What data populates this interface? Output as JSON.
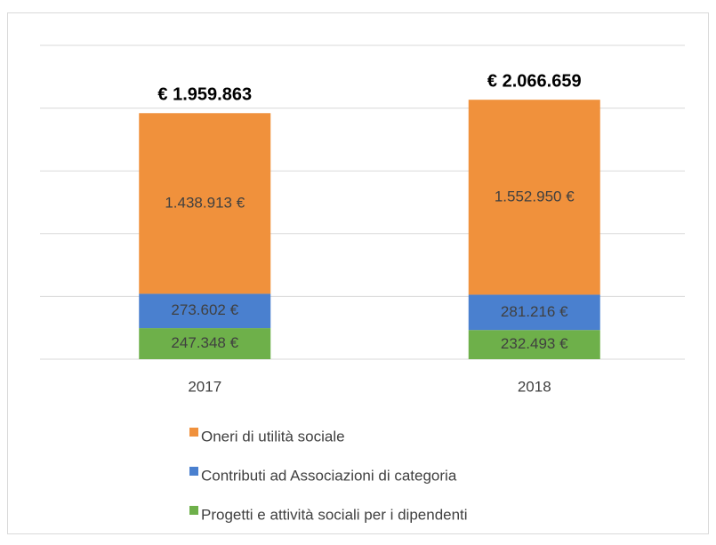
{
  "chart_data": {
    "type": "stacked_bar",
    "categories": [
      "2017",
      "2018"
    ],
    "series": [
      {
        "name": "Oneri di utilità sociale",
        "color": "#f0913c",
        "values": [
          1438913,
          1552950
        ],
        "value_labels": [
          "1.438.913 €",
          "1.552.950 €"
        ]
      },
      {
        "name": "Contributi ad Associazioni di categoria",
        "color": "#4a80cf",
        "values": [
          273602,
          281216
        ],
        "value_labels": [
          "273.602 €",
          "281.216 €"
        ]
      },
      {
        "name": "Progetti e attività sociali per i dipendenti",
        "color": "#6eb04a",
        "values": [
          247348,
          232493
        ],
        "value_labels": [
          "247.348 €",
          "232.493 €"
        ]
      }
    ],
    "totals": {
      "values": [
        1959863,
        2066659
      ],
      "value_labels": [
        "€ 1.959.863",
        "€ 2.066.659"
      ]
    },
    "ylim": [
      0,
      2500000
    ],
    "yticks": [
      0,
      500000,
      1000000,
      1500000,
      2000000,
      2500000
    ],
    "grid": true,
    "legend": "bottom"
  }
}
